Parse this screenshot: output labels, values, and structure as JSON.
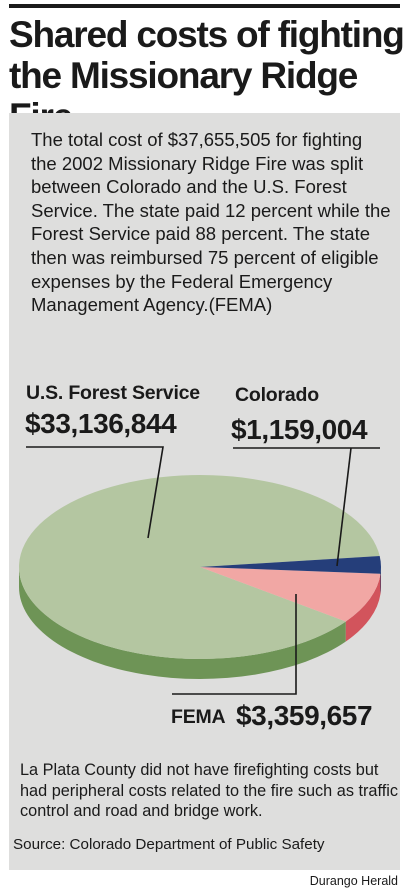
{
  "title_line1": "Shared costs of fighting",
  "title_line2": "the Missionary Ridge Fire",
  "intro_text": "The total cost of $37,655,505 for fighting the 2002 Missionary Ridge Fire was split between Colorado and the U.S. Forest Service. The state paid 12 percent while the Forest Service paid 88 percent. The state then was reimbursed 75 percent of eligible expenses by the Federal Emergency Management Agency.(FEMA)",
  "chart_data": {
    "type": "pie",
    "title": "",
    "total_label": "$37,655,505",
    "slices": [
      {
        "name": "U.S. Forest Service",
        "label": "$33,136,844",
        "value": 33136844,
        "top_color": "#b4c6a1",
        "side_color": "#6e9456"
      },
      {
        "name": "FEMA",
        "label": "$3,359,657",
        "value": 3359657,
        "top_color": "#f1a7a4",
        "side_color": "#d2545c"
      },
      {
        "name": "Colorado",
        "label": "$1,159,004",
        "value": 1159004,
        "top_color": "#253e7a",
        "side_color": "#152a5e"
      }
    ]
  },
  "footnote": "La Plata County did not have firefighting costs but had peripheral costs related to the fire such as traffic control and road and bridge work.",
  "source": "Source: Colorado Department of Public Safety",
  "credit": "Durango Herald"
}
